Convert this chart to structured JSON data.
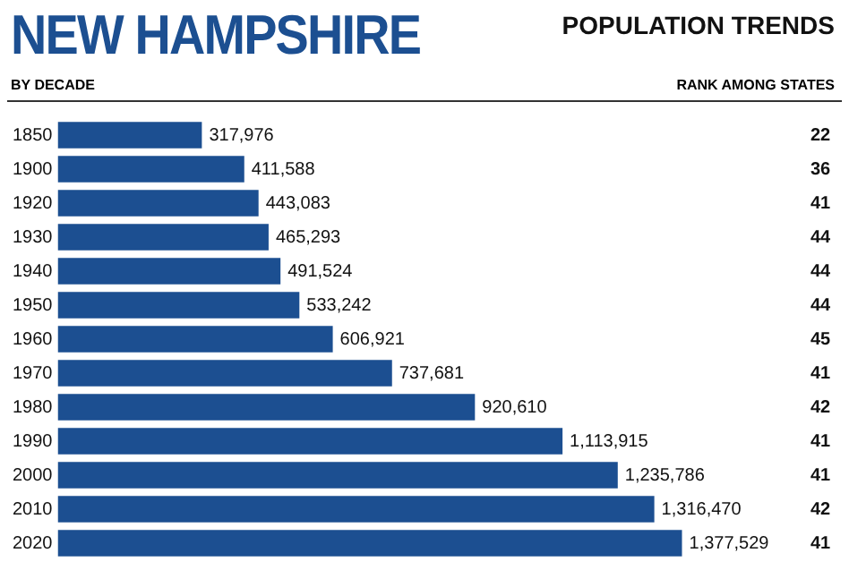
{
  "chart_data": {
    "type": "bar",
    "orientation": "horizontal",
    "title": "NEW HAMPSHIRE",
    "subtitle": "POPULATION TRENDS",
    "ylabel": "BY DECADE",
    "y2label": "RANK AMONG STATES",
    "categories": [
      "1850",
      "1900",
      "1920",
      "1930",
      "1940",
      "1950",
      "1960",
      "1970",
      "1980",
      "1990",
      "2000",
      "2010",
      "2020"
    ],
    "values": [
      317976,
      411588,
      443083,
      465293,
      491524,
      533242,
      606921,
      737681,
      920610,
      1113915,
      1235786,
      1316470,
      1377529
    ],
    "value_labels": [
      "317,976",
      "411,588",
      "443,083",
      "465,293",
      "491,524",
      "533,242",
      "606,921",
      "737,681",
      "920,610",
      "1,113,915",
      "1,235,786",
      "1,316,470",
      "1,377,529"
    ],
    "color": "#1c4f91",
    "grid": false,
    "legend": false,
    "tick_labels": "y",
    "annotations": [
      "22",
      "36",
      "41",
      "44",
      "44",
      "44",
      "45",
      "41",
      "42",
      "41",
      "41",
      "42",
      "41"
    ]
  }
}
